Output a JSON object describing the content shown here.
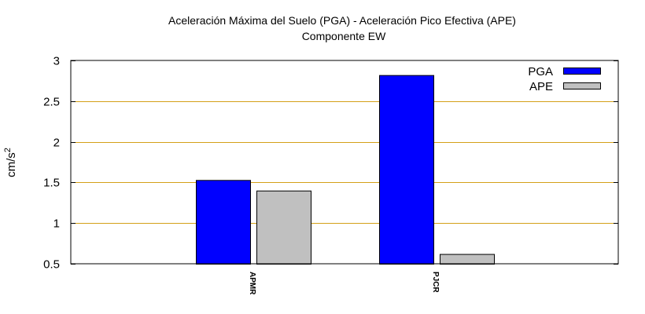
{
  "chart_data": {
    "type": "bar",
    "title": "Aceleración Máxima del Suelo (PGA) -  Aceleración Pico Efectiva (APE)",
    "subtitle": "Componente EW",
    "ylabel_base": "cm/s",
    "ylabel_sup": "2",
    "xlabel": "",
    "categories": [
      "APMR",
      "PJCR"
    ],
    "ylim": [
      0.5,
      3
    ],
    "yticks": [
      0.5,
      1,
      1.5,
      2,
      2.5,
      3
    ],
    "ytick_labels": [
      "0.5",
      "1",
      "1.5",
      "2",
      "2.5",
      "3"
    ],
    "grid": "horizontal",
    "grid_color": "#d4a017",
    "legend_position": "top-right",
    "series": [
      {
        "name": "PGA",
        "color": "#0000ff",
        "values": [
          1.53,
          2.82
        ]
      },
      {
        "name": "APE",
        "color": "#c0c0c0",
        "values": [
          1.4,
          0.62
        ]
      }
    ]
  }
}
